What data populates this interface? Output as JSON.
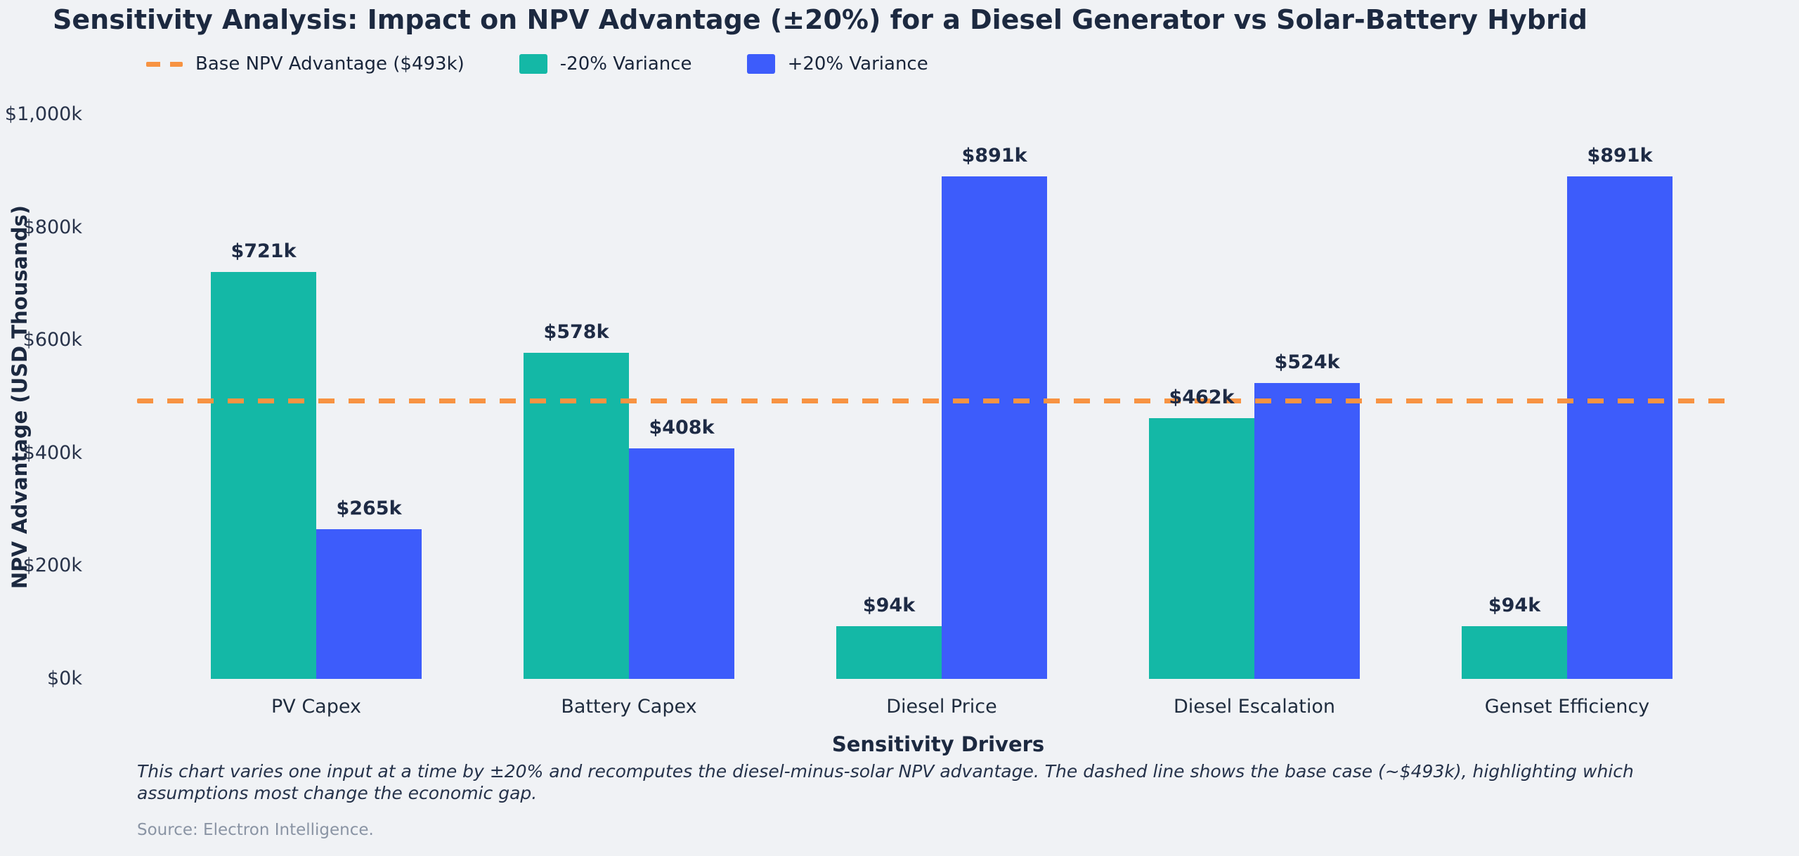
{
  "title": "Sensitivity Analysis: Impact on NPV Advantage (±20%) for a Diesel Generator vs Solar-Battery Hybrid",
  "legend": {
    "base_line_label": "Base NPV Advantage ($493k)",
    "minus_label": "-20% Variance",
    "plus_label": "+20% Variance"
  },
  "colors": {
    "background": "#f0f2f5",
    "teal": "#14b8a6",
    "blue": "#3d5cfb",
    "orange": "#f79342",
    "text_dark": "#1c2940",
    "source_gray": "#8a94a4"
  },
  "chart_data": {
    "type": "bar",
    "title": "Sensitivity Analysis: Impact on NPV Advantage (±20%) for a Diesel Generator vs Solar-Battery Hybrid",
    "categories": [
      "PV Capex",
      "Battery Capex",
      "Diesel Price",
      "Diesel Escalation",
      "Genset Efficiency"
    ],
    "series": [
      {
        "name": "-20% Variance",
        "color_key": "teal",
        "values": [
          721,
          578,
          94,
          462,
          94
        ],
        "labels": [
          "$721k",
          "$578k",
          "$94k",
          "$462k",
          "$94k"
        ]
      },
      {
        "name": "+20% Variance",
        "color_key": "blue",
        "values": [
          265,
          408,
          891,
          524,
          891
        ],
        "labels": [
          "$265k",
          "$408k",
          "$891k",
          "$524k",
          "$891k"
        ]
      }
    ],
    "baseline": {
      "value": 493,
      "label": "Base NPV Advantage ($493k)",
      "style": "dashed",
      "color_key": "orange"
    },
    "xlabel": "Sensitivity Drivers",
    "ylabel": "NPV Advantage (USD Thousands)",
    "ylim": [
      0,
      1000
    ],
    "yticks": [
      0,
      200,
      400,
      600,
      800,
      1000
    ],
    "ytick_labels": [
      "$0k",
      "$200k",
      "$400k",
      "$600k",
      "$800k",
      "$1,000k"
    ],
    "grid": false,
    "legend_position": "top-left"
  },
  "caption": "This chart varies one input at a time by ±20% and recomputes the diesel-minus-solar NPV advantage. The dashed line shows the base case (~$493k), highlighting which assumptions most change the economic gap.",
  "source": "Source: Electron Intelligence."
}
